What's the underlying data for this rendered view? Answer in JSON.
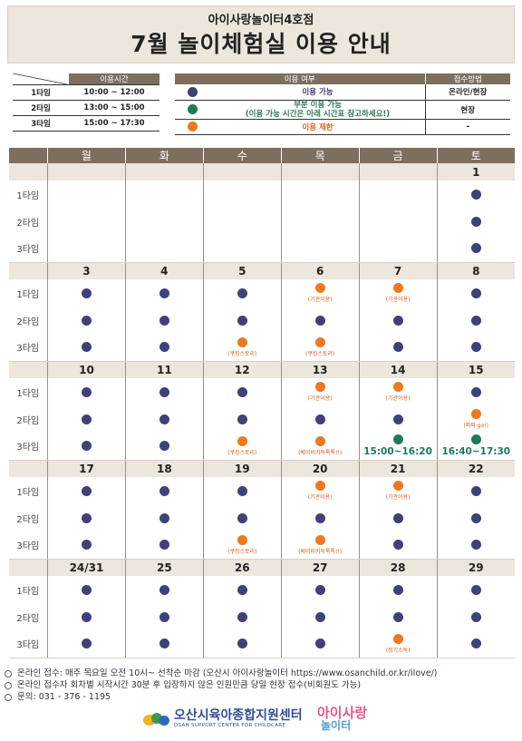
{
  "header": {
    "subtitle": "아이사랑놀이터4호점",
    "title": "7월 놀이체험실 이용 안내"
  },
  "time_table": {
    "header": "이용시간",
    "rows": [
      {
        "label": "1타임",
        "time": "10:00 ~ 12:00"
      },
      {
        "label": "2타임",
        "time": "13:00 ~ 15:00"
      },
      {
        "label": "3타임",
        "time": "15:00 ~ 17:30"
      }
    ]
  },
  "legend": {
    "status_header": "이용 여부",
    "method_header": "접수방법",
    "rows": [
      {
        "color": "navy",
        "text": "이용 가능",
        "text2": "",
        "method": "온라인/현장"
      },
      {
        "color": "green",
        "text": "부분 이용 가능",
        "text2": "(이용 가능 시간은 아래 시간표 참고하세요!)",
        "method": "현장"
      },
      {
        "color": "orange",
        "text": "이용 제한",
        "text2": "",
        "method": "-"
      }
    ]
  },
  "calendar": {
    "weekdays": [
      "월",
      "화",
      "수",
      "목",
      "금",
      "토"
    ],
    "slot_labels": [
      "1타임",
      "2타임",
      "3타임"
    ],
    "weeks": [
      {
        "dates": [
          "",
          "",
          "",
          "",
          "",
          "1"
        ],
        "slots": [
          [
            {
              "s": ""
            },
            {
              "s": ""
            },
            {
              "s": ""
            },
            {
              "s": ""
            },
            {
              "s": ""
            },
            {
              "s": "a"
            }
          ],
          [
            {
              "s": ""
            },
            {
              "s": ""
            },
            {
              "s": ""
            },
            {
              "s": ""
            },
            {
              "s": ""
            },
            {
              "s": "a"
            }
          ],
          [
            {
              "s": ""
            },
            {
              "s": ""
            },
            {
              "s": ""
            },
            {
              "s": ""
            },
            {
              "s": ""
            },
            {
              "s": "a"
            }
          ]
        ]
      },
      {
        "dates": [
          "3",
          "4",
          "5",
          "6",
          "7",
          "8"
        ],
        "slots": [
          [
            {
              "s": "a"
            },
            {
              "s": "a"
            },
            {
              "s": "a"
            },
            {
              "s": "r",
              "n": "(기관이용)"
            },
            {
              "s": "r",
              "n": "(기관이용)"
            },
            {
              "s": "a"
            }
          ],
          [
            {
              "s": "a"
            },
            {
              "s": "a"
            },
            {
              "s": "a"
            },
            {
              "s": "a"
            },
            {
              "s": "a"
            },
            {
              "s": "a"
            }
          ],
          [
            {
              "s": "a"
            },
            {
              "s": "a"
            },
            {
              "s": "r",
              "n": "(쿠킹스토리)"
            },
            {
              "s": "r",
              "n": "(쿠킹스토리)"
            },
            {
              "s": "a"
            },
            {
              "s": "a"
            }
          ]
        ]
      },
      {
        "dates": [
          "10",
          "11",
          "12",
          "13",
          "14",
          "15"
        ],
        "slots": [
          [
            {
              "s": "a"
            },
            {
              "s": "a"
            },
            {
              "s": "a"
            },
            {
              "s": "r",
              "n": "(기관이용)"
            },
            {
              "s": "r",
              "n": "(기관이용)"
            },
            {
              "s": "a"
            }
          ],
          [
            {
              "s": "a"
            },
            {
              "s": "a"
            },
            {
              "s": "a"
            },
            {
              "s": "a"
            },
            {
              "s": "a"
            },
            {
              "s": "r",
              "n": "(파파 go!)"
            }
          ],
          [
            {
              "s": "a"
            },
            {
              "s": "a"
            },
            {
              "s": "r",
              "n": "(쿠킹스토리)"
            },
            {
              "s": "r",
              "n": "(베이비키득톡톡!!)"
            },
            {
              "s": "p",
              "t": "15:00~16:20"
            },
            {
              "s": "p",
              "t": "16:40~17:30"
            }
          ]
        ]
      },
      {
        "dates": [
          "17",
          "18",
          "19",
          "20",
          "21",
          "22"
        ],
        "slots": [
          [
            {
              "s": "a"
            },
            {
              "s": "a"
            },
            {
              "s": "a"
            },
            {
              "s": "r",
              "n": "(기관이용)"
            },
            {
              "s": "r",
              "n": "(기관이용)"
            },
            {
              "s": "a"
            }
          ],
          [
            {
              "s": "a"
            },
            {
              "s": "a"
            },
            {
              "s": "a"
            },
            {
              "s": "a"
            },
            {
              "s": "a"
            },
            {
              "s": "a"
            }
          ],
          [
            {
              "s": "a"
            },
            {
              "s": "a"
            },
            {
              "s": "r",
              "n": "(쿠킹스토리)"
            },
            {
              "s": "r",
              "n": "(베이비키득톡톡!!)"
            },
            {
              "s": "a"
            },
            {
              "s": "a"
            }
          ]
        ]
      },
      {
        "dates": [
          "24/31",
          "25",
          "26",
          "27",
          "28",
          "29"
        ],
        "slots": [
          [
            {
              "s": "a"
            },
            {
              "s": "a"
            },
            {
              "s": "a"
            },
            {
              "s": "a"
            },
            {
              "s": "a"
            },
            {
              "s": "a"
            }
          ],
          [
            {
              "s": "a"
            },
            {
              "s": "a"
            },
            {
              "s": "a"
            },
            {
              "s": "a"
            },
            {
              "s": "a"
            },
            {
              "s": "a"
            }
          ],
          [
            {
              "s": "a"
            },
            {
              "s": "a"
            },
            {
              "s": "a"
            },
            {
              "s": "a"
            },
            {
              "s": "r",
              "n": "(정기소독)"
            },
            {
              "s": "a"
            }
          ]
        ]
      }
    ]
  },
  "footer": {
    "lines": [
      "온라인 접수: 매주 목요일 오전 10시~ 선착순 마감 (오산시 아이사랑놀이터 https://www.osanchild.or.kr/ilove/)",
      "온라인 접수자 회차별 시작시간 30분 후 입장하지 않은 인원만큼 당일 현장 접수(비회원도 가능)",
      "문의: 031 - 376 - 1195"
    ],
    "org_name": "오산시육아종합지원센터",
    "org_eng": "OSAN SUPPORT CENTER FOR CHILDCARE",
    "brand_line1": "아이사랑",
    "brand_line2": "놀이터"
  },
  "colors": {
    "available": "#40407a",
    "partial": "#1f7a57",
    "restricted": "#f0781e",
    "header_bg": "#7e6e5e",
    "banner_bg": "#ece6dd"
  }
}
